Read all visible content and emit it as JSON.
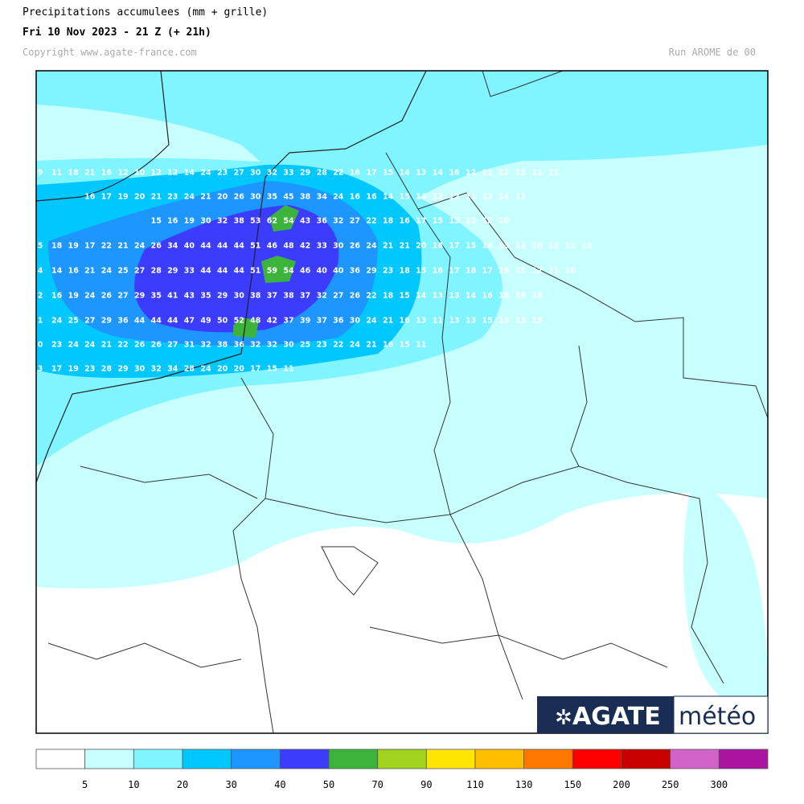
{
  "header": {
    "title": "Precipitations accumulees (mm + grille)",
    "subtitle": "Fri 10 Nov 2023 - 21 Z (+ 21h)",
    "copyright": "Copyright www.agate-france.com",
    "run": "Run AROME de 00"
  },
  "logo": {
    "brand": "AGATE",
    "suffix": "météo"
  },
  "legend": {
    "labels": [
      5,
      10,
      20,
      30,
      40,
      50,
      70,
      90,
      110,
      130,
      150,
      200,
      250,
      300
    ],
    "colors": [
      "#ffffff",
      "#c8ffff",
      "#80f4ff",
      "#00c8ff",
      "#1e96ff",
      "#3c3cff",
      "#3cb43c",
      "#a0d21e",
      "#ffe600",
      "#ffbe00",
      "#ff7800",
      "#ff0000",
      "#c80000",
      "#d264c8",
      "#aa14a0"
    ]
  },
  "grid": {
    "rows": [
      [
        9,
        11,
        18,
        21,
        16,
        12,
        10,
        12,
        12,
        14,
        24,
        23,
        27,
        30,
        32,
        33,
        29,
        28,
        22,
        16,
        17,
        15,
        14,
        13,
        14,
        16,
        12,
        11,
        12,
        12,
        11,
        11
      ],
      [
        16,
        17,
        19,
        20,
        21,
        23,
        24,
        21,
        20,
        26,
        30,
        35,
        45,
        38,
        34,
        24,
        16,
        16,
        14,
        15,
        14,
        12,
        12,
        11,
        13,
        14,
        11
      ],
      [
        15,
        16,
        19,
        30,
        32,
        38,
        53,
        62,
        54,
        43,
        36,
        32,
        27,
        22,
        18,
        16,
        17,
        15,
        13,
        12,
        12,
        10
      ],
      [
        5,
        18,
        19,
        17,
        22,
        21,
        24,
        26,
        34,
        40,
        44,
        44,
        44,
        51,
        46,
        48,
        42,
        33,
        30,
        26,
        24,
        21,
        21,
        20,
        18,
        17,
        15,
        14,
        13,
        13,
        10,
        12,
        11,
        12
      ],
      [
        4,
        14,
        16,
        21,
        24,
        25,
        27,
        28,
        29,
        33,
        44,
        44,
        44,
        51,
        59,
        54,
        46,
        40,
        40,
        36,
        29,
        23,
        18,
        15,
        16,
        17,
        18,
        17,
        16,
        15,
        12,
        11,
        10
      ],
      [
        2,
        16,
        19,
        24,
        26,
        27,
        29,
        35,
        41,
        43,
        35,
        29,
        30,
        38,
        37,
        38,
        37,
        32,
        27,
        26,
        22,
        18,
        15,
        14,
        13,
        13,
        14,
        16,
        18,
        19,
        18
      ],
      [
        1,
        24,
        25,
        27,
        29,
        36,
        44,
        44,
        44,
        47,
        49,
        50,
        52,
        48,
        42,
        37,
        39,
        37,
        36,
        30,
        24,
        21,
        16,
        13,
        11,
        13,
        13,
        15,
        13,
        13,
        15
      ],
      [
        0,
        23,
        24,
        24,
        21,
        22,
        26,
        26,
        27,
        31,
        32,
        38,
        36,
        32,
        32,
        30,
        25,
        23,
        22,
        24,
        21,
        16,
        15,
        11
      ],
      [
        3,
        17,
        19,
        23,
        28,
        29,
        30,
        32,
        34,
        28,
        24,
        20,
        20,
        17,
        15,
        11
      ]
    ]
  }
}
